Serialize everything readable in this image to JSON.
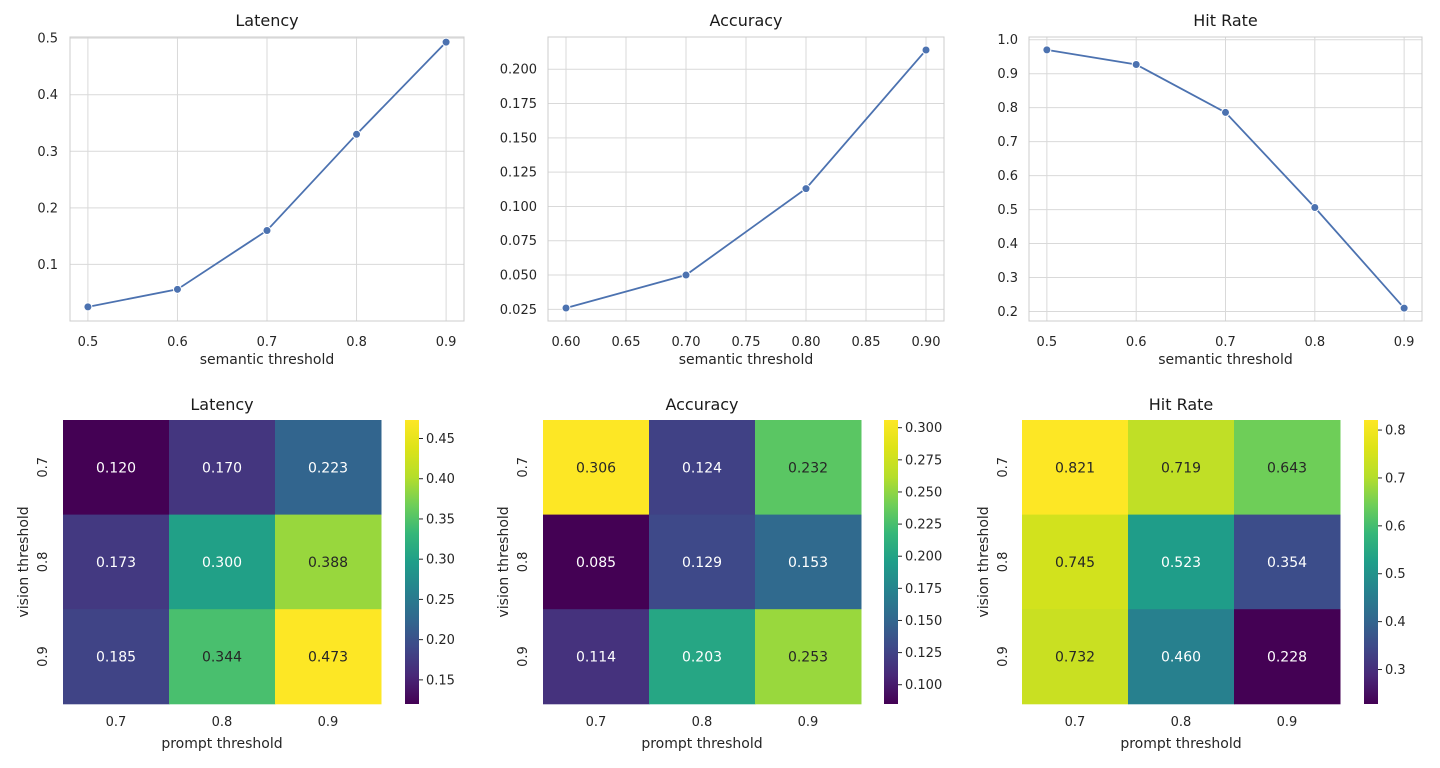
{
  "chart_data": [
    {
      "type": "line",
      "title": "Latency",
      "xlabel": "semantic threshold",
      "ylabel": "",
      "x": [
        0.5,
        0.6,
        0.7,
        0.8,
        0.9
      ],
      "values": [
        0.025,
        0.056,
        0.16,
        0.33,
        0.493
      ],
      "xticks": [
        "0.5",
        "0.6",
        "0.7",
        "0.8",
        "0.9"
      ],
      "yticks": [
        "0.1",
        "0.2",
        "0.3",
        "0.4",
        "0.5"
      ],
      "xlim": [
        0.48,
        0.92
      ],
      "ylim": [
        0.0,
        0.502
      ],
      "grid": true,
      "color": "#4c72b0"
    },
    {
      "type": "line",
      "title": "Accuracy",
      "xlabel": "semantic threshold",
      "ylabel": "",
      "x": [
        0.6,
        0.7,
        0.8,
        0.9
      ],
      "values": [
        0.026,
        0.05,
        0.113,
        0.214
      ],
      "xticks": [
        "0.60",
        "0.65",
        "0.70",
        "0.75",
        "0.80",
        "0.85",
        "0.90"
      ],
      "yticks": [
        "0.025",
        "0.050",
        "0.075",
        "0.100",
        "0.125",
        "0.150",
        "0.175",
        "0.200"
      ],
      "xlim": [
        0.585,
        0.915
      ],
      "ylim": [
        0.0165,
        0.2235
      ],
      "grid": true,
      "color": "#4c72b0"
    },
    {
      "type": "line",
      "title": "Hit Rate",
      "xlabel": "semantic threshold",
      "ylabel": "",
      "x": [
        0.5,
        0.6,
        0.7,
        0.8,
        0.9
      ],
      "values": [
        0.97,
        0.927,
        0.786,
        0.506,
        0.21
      ],
      "xticks": [
        "0.5",
        "0.6",
        "0.7",
        "0.8",
        "0.9"
      ],
      "yticks": [
        "0.2",
        "0.3",
        "0.4",
        "0.5",
        "0.6",
        "0.7",
        "0.8",
        "0.9",
        "1.0"
      ],
      "xlim": [
        0.48,
        0.92
      ],
      "ylim": [
        0.172,
        1.008
      ],
      "grid": true,
      "color": "#4c72b0"
    },
    {
      "type": "heatmap",
      "title": "Latency",
      "xlabel": "prompt threshold",
      "ylabel": "vision threshold",
      "x": [
        "0.7",
        "0.8",
        "0.9"
      ],
      "y": [
        "0.7",
        "0.8",
        "0.9"
      ],
      "values": [
        [
          0.12,
          0.17,
          0.223
        ],
        [
          0.173,
          0.3,
          0.388
        ],
        [
          0.185,
          0.344,
          0.473
        ]
      ],
      "labels": [
        [
          "0.120",
          "0.170",
          "0.223"
        ],
        [
          "0.173",
          "0.300",
          "0.388"
        ],
        [
          "0.185",
          "0.344",
          "0.473"
        ]
      ],
      "vmin": 0.12,
      "vmax": 0.473,
      "colorbar_ticks": [
        0.15,
        0.2,
        0.25,
        0.3,
        0.35,
        0.4,
        0.45
      ],
      "colorbar_labels": [
        "0.15",
        "0.20",
        "0.25",
        "0.30",
        "0.35",
        "0.40",
        "0.45"
      ],
      "colormap": "viridis"
    },
    {
      "type": "heatmap",
      "title": "Accuracy",
      "xlabel": "prompt threshold",
      "ylabel": "vision threshold",
      "x": [
        "0.7",
        "0.8",
        "0.9"
      ],
      "y": [
        "0.7",
        "0.8",
        "0.9"
      ],
      "values": [
        [
          0.306,
          0.124,
          0.232
        ],
        [
          0.085,
          0.129,
          0.153
        ],
        [
          0.114,
          0.203,
          0.253
        ]
      ],
      "labels": [
        [
          "0.306",
          "0.124",
          "0.232"
        ],
        [
          "0.085",
          "0.129",
          "0.153"
        ],
        [
          "0.114",
          "0.203",
          "0.253"
        ]
      ],
      "vmin": 0.085,
      "vmax": 0.306,
      "colorbar_ticks": [
        0.1,
        0.125,
        0.15,
        0.175,
        0.2,
        0.225,
        0.25,
        0.275,
        0.3
      ],
      "colorbar_labels": [
        "0.100",
        "0.125",
        "0.150",
        "0.175",
        "0.200",
        "0.225",
        "0.250",
        "0.275",
        "0.300"
      ],
      "colormap": "viridis"
    },
    {
      "type": "heatmap",
      "title": "Hit Rate",
      "xlabel": "prompt threshold",
      "ylabel": "vision threshold",
      "x": [
        "0.7",
        "0.8",
        "0.9"
      ],
      "y": [
        "0.7",
        "0.8",
        "0.9"
      ],
      "values": [
        [
          0.821,
          0.719,
          0.643
        ],
        [
          0.745,
          0.523,
          0.354
        ],
        [
          0.732,
          0.46,
          0.228
        ]
      ],
      "labels": [
        [
          "0.821",
          "0.719",
          "0.643"
        ],
        [
          "0.745",
          "0.523",
          "0.354"
        ],
        [
          "0.732",
          "0.460",
          "0.228"
        ]
      ],
      "vmin": 0.228,
      "vmax": 0.821,
      "colorbar_ticks": [
        0.3,
        0.4,
        0.5,
        0.6,
        0.7,
        0.8
      ],
      "colorbar_labels": [
        "0.3",
        "0.4",
        "0.5",
        "0.6",
        "0.7",
        "0.8"
      ],
      "colormap": "viridis"
    }
  ]
}
